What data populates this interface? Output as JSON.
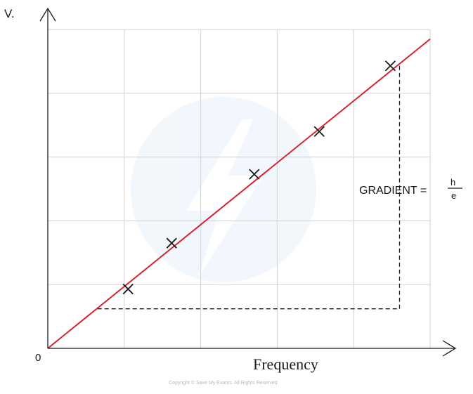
{
  "chart_data": {
    "type": "scatter",
    "title": "",
    "xlabel": "Frequency",
    "ylabel": "V.",
    "origin_label": "0",
    "grid": true,
    "grid_columns": 5,
    "grid_rows": 5,
    "xlim": [
      0,
      5
    ],
    "ylim": [
      0,
      5
    ],
    "points": [
      {
        "x": 1.05,
        "y": 0.93
      },
      {
        "x": 1.62,
        "y": 1.65
      },
      {
        "x": 2.7,
        "y": 2.73
      },
      {
        "x": 3.55,
        "y": 3.4
      },
      {
        "x": 4.48,
        "y": 4.43
      }
    ],
    "best_fit": {
      "x": [
        0,
        5.0
      ],
      "y": [
        0,
        4.85
      ]
    },
    "gradient_triangle": {
      "x": [
        0.65,
        4.6
      ],
      "y": [
        0.62,
        4.43
      ]
    },
    "annotation": {
      "text": "GRADIENT =",
      "numerator": "h",
      "denominator": "e"
    },
    "colors": {
      "fit_line": "#d8212f",
      "axes": "#1a1a1a",
      "grid": "#d9d9d9",
      "markers": "#1a1a1a"
    }
  },
  "footer": {
    "copyright": "Copyright © Save My Exams. All Rights Reserved"
  }
}
